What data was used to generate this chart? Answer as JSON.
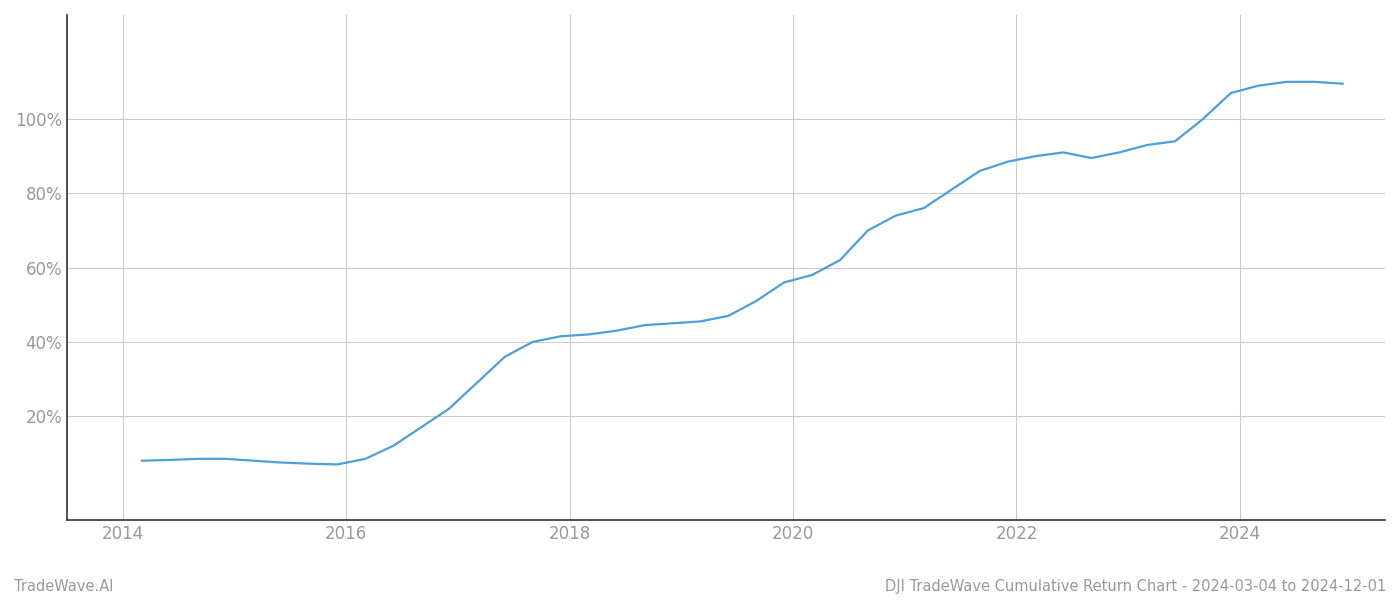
{
  "x_years": [
    2014.17,
    2014.42,
    2014.67,
    2014.92,
    2015.17,
    2015.42,
    2015.67,
    2015.92,
    2016.17,
    2016.42,
    2016.67,
    2016.92,
    2017.17,
    2017.42,
    2017.67,
    2017.92,
    2018.17,
    2018.42,
    2018.67,
    2018.92,
    2019.17,
    2019.42,
    2019.67,
    2019.92,
    2020.17,
    2020.42,
    2020.67,
    2020.92,
    2021.17,
    2021.42,
    2021.67,
    2021.92,
    2022.17,
    2022.42,
    2022.67,
    2022.92,
    2023.17,
    2023.42,
    2023.67,
    2023.92,
    2024.17,
    2024.42,
    2024.67,
    2024.92
  ],
  "y_values": [
    8.0,
    8.2,
    8.5,
    8.5,
    8.0,
    7.5,
    7.2,
    7.0,
    8.5,
    12.0,
    17.0,
    22.0,
    29.0,
    36.0,
    40.0,
    41.5,
    42.0,
    43.0,
    44.5,
    45.0,
    45.5,
    47.0,
    51.0,
    56.0,
    58.0,
    62.0,
    70.0,
    74.0,
    76.0,
    81.0,
    86.0,
    88.5,
    90.0,
    91.0,
    89.5,
    91.0,
    93.0,
    94.0,
    100.0,
    107.0,
    109.0,
    110.0,
    110.0,
    109.5
  ],
  "line_color": "#4d9fdb",
  "line_width": 1.6,
  "background_color": "#ffffff",
  "grid_color": "#cccccc",
  "title": "DJI TradeWave Cumulative Return Chart - 2024-03-04 to 2024-12-01",
  "watermark": "TradeWave.AI",
  "xlim": [
    2013.5,
    2025.3
  ],
  "ylim": [
    -8,
    128
  ],
  "xticks": [
    2014,
    2016,
    2018,
    2020,
    2022,
    2024
  ],
  "yticks": [
    20,
    40,
    60,
    80,
    100
  ],
  "tick_label_color": "#999999",
  "axis_color": "#333333",
  "title_fontsize": 10.5,
  "watermark_fontsize": 10.5,
  "tick_fontsize": 12
}
